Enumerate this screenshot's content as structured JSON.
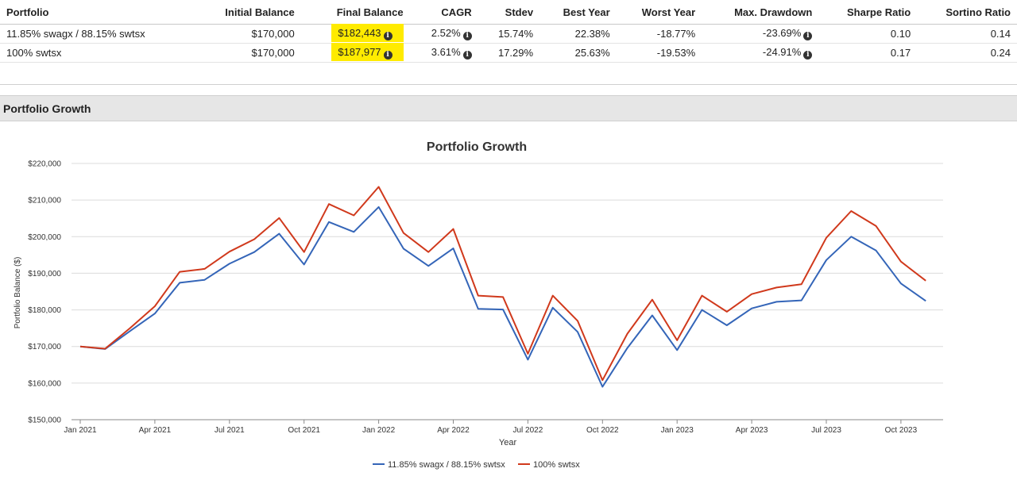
{
  "table": {
    "headers": [
      "Portfolio",
      "Initial Balance",
      "Final Balance",
      "CAGR",
      "Stdev",
      "Best Year",
      "Worst Year",
      "Max. Drawdown",
      "Sharpe Ratio",
      "Sortino Ratio"
    ],
    "rows": [
      {
        "portfolio": "11.85% swagx / 88.15% swtsx",
        "initial": "$170,000",
        "final": "$182,443",
        "cagr": "2.52%",
        "stdev": "15.74%",
        "best": "22.38%",
        "worst": "-18.77%",
        "drawdown": "-23.69%",
        "sharpe": "0.10",
        "sortino": "0.14"
      },
      {
        "portfolio": "100% swtsx",
        "initial": "$170,000",
        "final": "$187,977",
        "cagr": "3.61%",
        "stdev": "17.29%",
        "best": "25.63%",
        "worst": "-19.53%",
        "drawdown": "-24.91%",
        "sharpe": "0.17",
        "sortino": "0.24"
      }
    ],
    "highlight_color": "#ffeb00"
  },
  "section": {
    "title": "Portfolio Growth"
  },
  "chart_data": {
    "type": "line",
    "title": "Portfolio Growth",
    "xlabel": "Year",
    "ylabel": "Portfolio Balance ($)",
    "ylim": [
      150000,
      220000
    ],
    "yticks": [
      150000,
      160000,
      170000,
      180000,
      190000,
      200000,
      210000,
      220000
    ],
    "ytick_labels": [
      "$150,000",
      "$160,000",
      "$170,000",
      "$180,000",
      "$190,000",
      "$200,000",
      "$210,000",
      "$220,000"
    ],
    "xtick_labels": [
      "Jan 2021",
      "Apr 2021",
      "Jul 2021",
      "Oct 2021",
      "Jan 2022",
      "Apr 2022",
      "Jul 2022",
      "Oct 2022",
      "Jan 2023",
      "Apr 2023",
      "Jul 2023",
      "Oct 2023"
    ],
    "xtick_index": [
      0,
      3,
      6,
      9,
      12,
      15,
      18,
      21,
      24,
      27,
      30,
      33
    ],
    "x": [
      "Jan 2021",
      "Feb 2021",
      "Mar 2021",
      "Apr 2021",
      "May 2021",
      "Jun 2021",
      "Jul 2021",
      "Aug 2021",
      "Sep 2021",
      "Oct 2021",
      "Nov 2021",
      "Dec 2021",
      "Jan 2022",
      "Feb 2022",
      "Mar 2022",
      "Apr 2022",
      "May 2022",
      "Jun 2022",
      "Jul 2022",
      "Aug 2022",
      "Sep 2022",
      "Oct 2022",
      "Nov 2022",
      "Dec 2022",
      "Jan 2023",
      "Feb 2023",
      "Mar 2023",
      "Apr 2023",
      "May 2023",
      "Jun 2023",
      "Jul 2023",
      "Aug 2023",
      "Sep 2023",
      "Oct 2023",
      "Nov 2023"
    ],
    "series": [
      {
        "name": "11.85% swagx / 88.15% swtsx",
        "color": "#3465b8",
        "values": [
          170000,
          169300,
          174200,
          179000,
          187400,
          188200,
          192600,
          195800,
          200800,
          192400,
          204000,
          201300,
          208100,
          196700,
          192000,
          196800,
          180300,
          180100,
          166400,
          180600,
          174000,
          159000,
          169600,
          178500,
          169000,
          180000,
          175800,
          180400,
          182200,
          182600,
          193600,
          200000,
          196200,
          187200,
          182443
        ]
      },
      {
        "name": "100% swtsx",
        "color": "#d0391c",
        "values": [
          170000,
          169400,
          175000,
          181000,
          190400,
          191200,
          195900,
          199300,
          205100,
          195800,
          208900,
          205800,
          213600,
          201000,
          195800,
          202100,
          183900,
          183500,
          168000,
          183900,
          177000,
          160800,
          173500,
          182800,
          171700,
          183900,
          179500,
          184300,
          186100,
          187000,
          199700,
          207000,
          202900,
          193200,
          187977
        ]
      }
    ]
  }
}
